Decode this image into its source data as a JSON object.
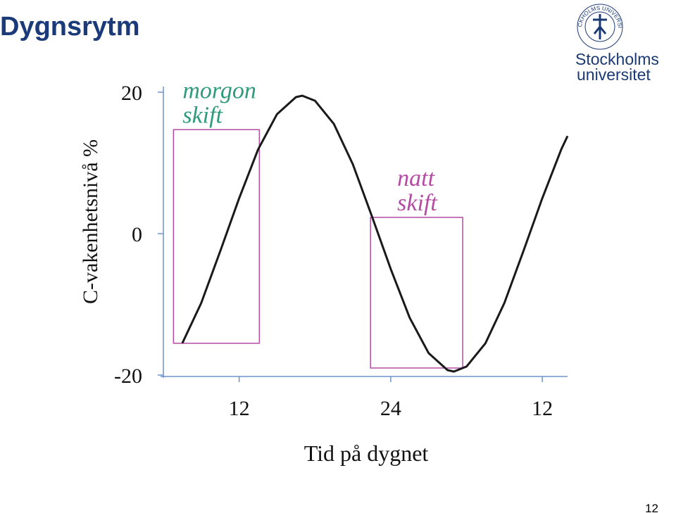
{
  "title": "Dygnsrytm",
  "logo": {
    "seal": "STOCKHOLMS UNIVERSITET",
    "lines": [
      "Stockholms",
      "universitet"
    ]
  },
  "page_number": "12",
  "chart_data": {
    "type": "line",
    "x_label": "Tid på dygnet",
    "y_label": "C-vakenhetsnivå %",
    "x": [
      7.5,
      9,
      10.5,
      12,
      13.5,
      15,
      16.5,
      17,
      18,
      19.5,
      21,
      22.5,
      24,
      25.5,
      27,
      28.5,
      29,
      30,
      31.5,
      33,
      34.5,
      36,
      37.5,
      38
    ],
    "series": [
      {
        "color": "#1a1a1a",
        "values": [
          -15.5,
          -9.8,
          -2.5,
          5.0,
          11.9,
          16.9,
          19.3,
          19.5,
          18.8,
          15.5,
          9.8,
          2.5,
          -5.0,
          -11.9,
          -16.9,
          -19.3,
          -19.5,
          -18.8,
          -15.5,
          -9.8,
          -2.5,
          5.0,
          11.9,
          13.8
        ]
      }
    ],
    "xlim": [
      6,
      38
    ],
    "xticks": [
      12,
      24,
      {
        "value": 36,
        "label": "12"
      }
    ],
    "ylim": [
      -20,
      20
    ],
    "yticks": [
      -20,
      0,
      20
    ],
    "axis_color": "#6f93c9",
    "annotations": [
      {
        "label": [
          "morgon",
          "skift"
        ],
        "color": "#2f9a7c",
        "box_color": "#b54ba4",
        "x": [
          6.8,
          13.6
        ],
        "y": [
          -15.5,
          14.7
        ]
      },
      {
        "label": [
          "natt",
          "skift"
        ],
        "color": "#b54ba4",
        "box_color": "#b54ba4",
        "x": [
          22.4,
          29.7
        ],
        "y": [
          -19.0,
          2.3
        ]
      }
    ]
  }
}
